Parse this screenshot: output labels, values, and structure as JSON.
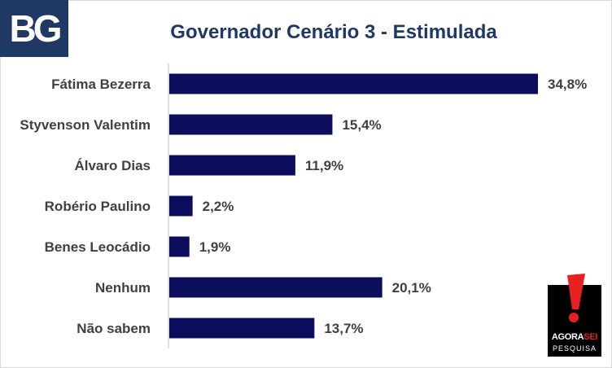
{
  "logo": {
    "text": "BG"
  },
  "chart_data": {
    "type": "bar",
    "orientation": "horizontal",
    "title": "Governador Cenário 3 - Estimulada",
    "categories": [
      "Fátima Bezerra",
      "Styvenson Valentim",
      "Álvaro Dias",
      "Robério Paulino",
      "Benes Leocádio",
      "Nenhum",
      "Não sabem"
    ],
    "values": [
      34.8,
      15.4,
      11.9,
      2.2,
      1.9,
      20.1,
      13.7
    ],
    "value_labels": [
      "34,8%",
      "15,4%",
      "11,9%",
      "2,2%",
      "1,9%",
      "20,1%",
      "13,7%"
    ],
    "xlim": [
      0,
      34.8
    ],
    "bar_color": "#0d0d5e",
    "grid": false,
    "legend": "none"
  },
  "brand": {
    "name_part1": "AGORA",
    "name_part2": "SEI",
    "sub": "PESQUISA",
    "accent": "#e8201f"
  }
}
